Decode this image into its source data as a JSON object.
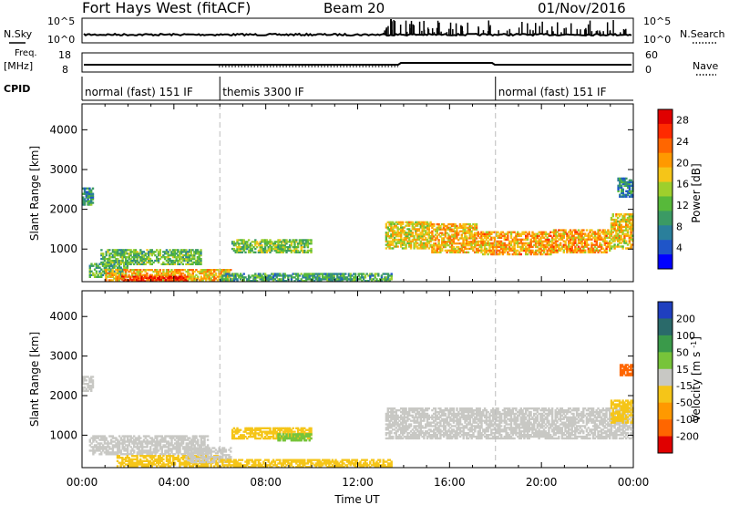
{
  "header": {
    "title": "Fort Hays West (fitACF)",
    "beam": "Beam 20",
    "date": "01/Nov/2016"
  },
  "summary_labels": {
    "nsky": "N.Sky",
    "nsearch": "N.Search",
    "freq_line1": "Freq.",
    "freq_line2": "[MHz]",
    "nave": "Nave",
    "cpid": "CPID"
  },
  "summary_ticks": {
    "noise_left": [
      "10^5",
      "10^0"
    ],
    "noise_right": [
      "10^5",
      "10^0"
    ],
    "freq_left": [
      "18",
      "8"
    ],
    "freq_right": [
      "60",
      "0"
    ]
  },
  "cpid_segments": [
    {
      "label": "normal (fast) 151 IF",
      "start_hour": 0,
      "end_hour": 6
    },
    {
      "label": "themis 3300 IF",
      "start_hour": 6,
      "end_hour": 18
    },
    {
      "label": "normal (fast) 151 IF",
      "start_hour": 18,
      "end_hour": 24
    }
  ],
  "chart_data": [
    {
      "type": "heatmap",
      "title": "Power",
      "xlabel": "Time UT",
      "ylabel": "Slant Range [km]",
      "x_ticks": [
        "00:00",
        "04:00",
        "08:00",
        "12:00",
        "16:00",
        "20:00",
        "00:00"
      ],
      "xlim_hours": [
        0,
        24
      ],
      "y_ticks": [
        "1000",
        "2000",
        "3000",
        "4000"
      ],
      "ylim_km": [
        180,
        4650
      ],
      "colorbar": {
        "label": "Power [dB]",
        "tick_labels": [
          "4",
          "8",
          "12",
          "16",
          "20",
          "24",
          "28"
        ],
        "range": [
          0,
          30
        ],
        "colors": [
          "#0000ff",
          "#1f55c8",
          "#2a7f9b",
          "#3b9a64",
          "#57b93a",
          "#9ecf2c",
          "#f5c518",
          "#ff9900",
          "#ff6600",
          "#ff2a00",
          "#e00000"
        ]
      },
      "echo_regions": [
        {
          "t0": 0.0,
          "t1": 0.5,
          "r0": 2100,
          "r1": 2550,
          "value": 9
        },
        {
          "t0": 0.3,
          "t1": 2.0,
          "r0": 280,
          "r1": 650,
          "value": 11
        },
        {
          "t0": 0.8,
          "t1": 5.2,
          "r0": 600,
          "r1": 1000,
          "value": 12
        },
        {
          "t0": 1.0,
          "t1": 6.5,
          "r0": 200,
          "r1": 500,
          "value": 19
        },
        {
          "t0": 1.7,
          "t1": 4.6,
          "r0": 180,
          "r1": 330,
          "value": 27
        },
        {
          "t0": 6.5,
          "t1": 10.0,
          "r0": 900,
          "r1": 1250,
          "value": 13
        },
        {
          "t0": 6.0,
          "t1": 13.5,
          "r0": 180,
          "r1": 400,
          "value": 10
        },
        {
          "t0": 13.2,
          "t1": 15.2,
          "r0": 1000,
          "r1": 1700,
          "value": 17
        },
        {
          "t0": 15.2,
          "t1": 17.2,
          "r0": 900,
          "r1": 1650,
          "value": 19
        },
        {
          "t0": 17.2,
          "t1": 20.5,
          "r0": 850,
          "r1": 1450,
          "value": 20
        },
        {
          "t0": 20.5,
          "t1": 23.0,
          "r0": 900,
          "r1": 1500,
          "value": 20
        },
        {
          "t0": 23.0,
          "t1": 24.0,
          "r0": 1000,
          "r1": 1900,
          "value": 18
        },
        {
          "t0": 23.3,
          "t1": 24.0,
          "r0": 2300,
          "r1": 2800,
          "value": 8
        }
      ]
    },
    {
      "type": "heatmap",
      "title": "Velocity",
      "xlabel": "Time UT",
      "ylabel": "Slant Range [km]",
      "x_ticks": [
        "00:00",
        "04:00",
        "08:00",
        "12:00",
        "16:00",
        "20:00",
        "00:00"
      ],
      "xlim_hours": [
        0,
        24
      ],
      "y_ticks": [
        "1000",
        "2000",
        "3000",
        "4000"
      ],
      "ylim_km": [
        180,
        4650
      ],
      "colorbar": {
        "label": "Velocity [m s^-1]",
        "tick_labels": [
          "200",
          "100",
          "50",
          "15",
          "-15",
          "-50",
          "-100",
          "-200"
        ],
        "colors": [
          "#1f3fbf",
          "#2a6a6a",
          "#3a9a4a",
          "#77c43a",
          "#c8c8c4",
          "#f5c518",
          "#ff9900",
          "#ff6600",
          "#e00000"
        ]
      },
      "echo_regions": [
        {
          "t0": 0.0,
          "t1": 0.5,
          "r0": 2100,
          "r1": 2500,
          "value": 0
        },
        {
          "t0": 0.3,
          "t1": 5.5,
          "r0": 500,
          "r1": 1000,
          "value": 0
        },
        {
          "t0": 1.5,
          "t1": 6.0,
          "r0": 200,
          "r1": 500,
          "value": -40
        },
        {
          "t0": 4.5,
          "t1": 6.5,
          "r0": 300,
          "r1": 700,
          "value": 0
        },
        {
          "t0": 6.5,
          "t1": 10.0,
          "r0": 900,
          "r1": 1200,
          "value": -30
        },
        {
          "t0": 8.5,
          "t1": 10.0,
          "r0": 850,
          "r1": 1050,
          "value": 40
        },
        {
          "t0": 6.0,
          "t1": 13.5,
          "r0": 180,
          "r1": 400,
          "value": -40
        },
        {
          "t0": 13.2,
          "t1": 24.0,
          "r0": 900,
          "r1": 1700,
          "value": 0
        },
        {
          "t0": 23.0,
          "t1": 24.0,
          "r0": 1300,
          "r1": 1900,
          "value": -30
        },
        {
          "t0": 23.4,
          "t1": 24.0,
          "r0": 2500,
          "r1": 2800,
          "value": -150
        }
      ]
    }
  ]
}
